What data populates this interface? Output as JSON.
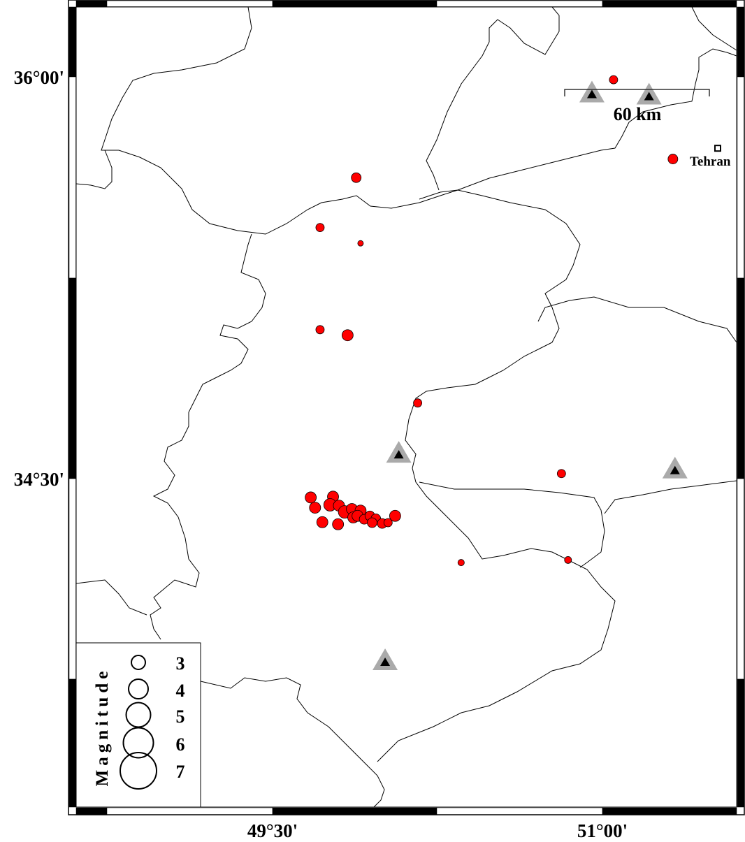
{
  "map": {
    "lon_range": [
      48.606,
      51.509
    ],
    "lat_range": [
      33.214,
      36.261
    ],
    "lat_ticks": [
      {
        "label": "36°00'",
        "value": 36.0
      },
      {
        "label": "34°30'",
        "value": 34.5
      }
    ],
    "lon_ticks": [
      {
        "label": "49°30'",
        "value": 49.5
      },
      {
        "label": "51°00'",
        "value": 51.0
      }
    ],
    "scale_bar": {
      "label": "60 km"
    },
    "city": {
      "name": "Tehran",
      "lon": 51.426,
      "lat": 35.723
    },
    "colors": {
      "event": "#ff0000",
      "station_outer": "#aaaaaa",
      "station_inner": "#000000"
    }
  },
  "legend": {
    "title": "Magnitude",
    "entries": [
      "3",
      "4",
      "5",
      "6",
      "7"
    ]
  },
  "stations": [
    {
      "lon": 50.873,
      "lat": 35.927
    },
    {
      "lon": 51.124,
      "lat": 35.919
    },
    {
      "lon": 50.024,
      "lat": 34.555
    },
    {
      "lon": 51.238,
      "lat": 34.495
    },
    {
      "lon": 49.964,
      "lat": 33.765
    }
  ],
  "events": [
    {
      "lon": 50.968,
      "lat": 35.984,
      "mag": 3.0
    },
    {
      "lon": 51.229,
      "lat": 35.682,
      "mag": 3.5
    },
    {
      "lon": 49.837,
      "lat": 35.611,
      "mag": 3.5
    },
    {
      "lon": 49.678,
      "lat": 35.421,
      "mag": 3.0
    },
    {
      "lon": 49.856,
      "lat": 35.361,
      "mag": 2.0
    },
    {
      "lon": 49.678,
      "lat": 35.032,
      "mag": 3.0
    },
    {
      "lon": 49.799,
      "lat": 35.011,
      "mag": 4.0
    },
    {
      "lon": 50.107,
      "lat": 34.753,
      "mag": 3.0
    },
    {
      "lon": 50.739,
      "lat": 34.484,
      "mag": 3.0
    },
    {
      "lon": 50.298,
      "lat": 34.145,
      "mag": 2.3
    },
    {
      "lon": 50.768,
      "lat": 34.155,
      "mag": 2.5
    },
    {
      "lon": 49.637,
      "lat": 34.393,
      "mag": 4.0
    },
    {
      "lon": 49.656,
      "lat": 34.354,
      "mag": 4.0
    },
    {
      "lon": 49.688,
      "lat": 34.299,
      "mag": 4.0
    },
    {
      "lon": 49.735,
      "lat": 34.396,
      "mag": 4.0
    },
    {
      "lon": 49.722,
      "lat": 34.365,
      "mag": 4.5
    },
    {
      "lon": 49.761,
      "lat": 34.362,
      "mag": 4.0
    },
    {
      "lon": 49.757,
      "lat": 34.291,
      "mag": 4.0
    },
    {
      "lon": 49.786,
      "lat": 34.338,
      "mag": 4.5
    },
    {
      "lon": 49.818,
      "lat": 34.349,
      "mag": 4.0
    },
    {
      "lon": 49.824,
      "lat": 34.317,
      "mag": 4.0
    },
    {
      "lon": 49.856,
      "lat": 34.343,
      "mag": 4.0
    },
    {
      "lon": 49.843,
      "lat": 34.323,
      "mag": 4.0
    },
    {
      "lon": 49.872,
      "lat": 34.31,
      "mag": 3.5
    },
    {
      "lon": 49.897,
      "lat": 34.323,
      "mag": 3.5
    },
    {
      "lon": 49.923,
      "lat": 34.312,
      "mag": 3.5
    },
    {
      "lon": 49.907,
      "lat": 34.297,
      "mag": 3.5
    },
    {
      "lon": 49.951,
      "lat": 34.294,
      "mag": 3.5
    },
    {
      "lon": 49.977,
      "lat": 34.297,
      "mag": 3.0
    },
    {
      "lon": 50.008,
      "lat": 34.323,
      "mag": 4.0
    }
  ]
}
